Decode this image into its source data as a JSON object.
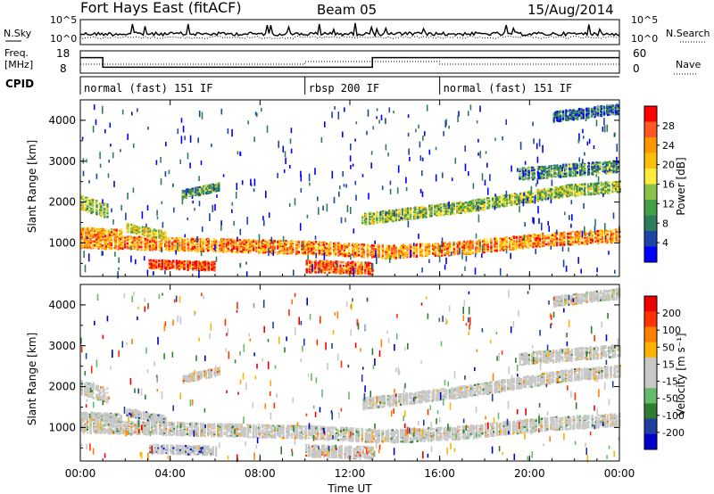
{
  "header": {
    "station": "Fort Hays East (fitACF)",
    "beam": "Beam 05",
    "date": "15/Aug/2014"
  },
  "summary_panels": {
    "nsky_label": "N.Sky",
    "nsky_ticks": [
      "10^5",
      "10^0"
    ],
    "nsky_right_ticks": [
      "10^5",
      "10^0"
    ],
    "nsearch_label": "N.Search",
    "freq_label_1": "Freq.",
    "freq_label_2": "[MHz]",
    "freq_ticks": [
      "18",
      "8"
    ],
    "nave_ticks": [
      "60",
      "0"
    ],
    "nave_label": "Nave",
    "cpid_label": "CPID",
    "cpid_segments": [
      {
        "label": "normal (fast) 151 IF",
        "start_hour": 0,
        "end_hour": 10
      },
      {
        "label": "rbsp 200 IF",
        "start_hour": 10,
        "end_hour": 16
      },
      {
        "label": "normal (fast) 151 IF",
        "start_hour": 16,
        "end_hour": 24
      }
    ],
    "frequency_steps": [
      {
        "start_hour": 0,
        "end_hour": 1,
        "freq_mhz": 16
      },
      {
        "start_hour": 1,
        "end_hour": 13,
        "freq_mhz": 10
      },
      {
        "start_hour": 13,
        "end_hour": 24,
        "freq_mhz": 16
      }
    ]
  },
  "chart_data": [
    {
      "type": "heatmap",
      "name": "power",
      "ylabel": "Slant Range [km]",
      "y_ticks": [
        1000,
        2000,
        3000,
        4000
      ],
      "ylim": [
        180,
        4500
      ],
      "x_ticks": [
        "00:00",
        "04:00",
        "08:00",
        "12:00",
        "16:00",
        "20:00",
        "00:00"
      ],
      "xlim_hours": [
        0,
        24
      ],
      "colorbar_label": "Power [dB]",
      "colorbar_ticks": [
        "28",
        "24",
        "20",
        "16",
        "12",
        "8",
        "4"
      ],
      "colors": [
        "#0000ff",
        "#1b45a8",
        "#2e7d5a",
        "#43a047",
        "#8bc34a",
        "#ffeb3b",
        "#ffc107",
        "#ff9800",
        "#ff5722",
        "#ff0000"
      ],
      "bands": [
        {
          "t": [
            0,
            24
          ],
          "center": [
            1050,
            1000,
            950,
            900,
            800,
            900,
            1100,
            1200
          ],
          "width": 320,
          "level": 0.75
        },
        {
          "t": [
            0,
            1.8
          ],
          "center": [
            1300,
            1250
          ],
          "width": 200,
          "level": 0.7
        },
        {
          "t": [
            0,
            1.2
          ],
          "center": [
            2000,
            1800
          ],
          "width": 350,
          "level": 0.45
        },
        {
          "t": [
            2,
            3.8
          ],
          "center": [
            1400,
            1200
          ],
          "width": 200,
          "level": 0.55
        },
        {
          "t": [
            4.5,
            6.2
          ],
          "center": [
            2200,
            2400
          ],
          "width": 200,
          "level": 0.35
        },
        {
          "t": [
            12.5,
            24
          ],
          "center": [
            1600,
            1750,
            1900,
            2100,
            2300,
            2400
          ],
          "width": 280,
          "level": 0.45
        },
        {
          "t": [
            10,
            13
          ],
          "center": [
            450,
            400
          ],
          "width": 300,
          "level": 0.85
        },
        {
          "t": [
            3,
            6
          ],
          "center": [
            500,
            450
          ],
          "width": 220,
          "level": 0.9
        },
        {
          "t": [
            19.5,
            24
          ],
          "center": [
            2700,
            2900
          ],
          "width": 300,
          "level": 0.3
        },
        {
          "t": [
            21,
            24
          ],
          "center": [
            4100,
            4300
          ],
          "width": 250,
          "level": 0.2
        }
      ]
    },
    {
      "type": "heatmap",
      "name": "velocity",
      "ylabel": "Slant Range [km]",
      "xlabel": "Time UT",
      "y_ticks": [
        1000,
        2000,
        3000,
        4000
      ],
      "ylim": [
        180,
        4500
      ],
      "x_ticks": [
        "00:00",
        "04:00",
        "08:00",
        "12:00",
        "16:00",
        "20:00",
        "00:00"
      ],
      "xlim_hours": [
        0,
        24
      ],
      "colorbar_label": "Velocity [m s⁻¹]",
      "colorbar_ticks": [
        "200",
        "100",
        "50",
        "15",
        "-15",
        "-50",
        "-100",
        "-200"
      ],
      "colors": [
        "#0000cc",
        "#1f3fa0",
        "#2e7d32",
        "#66bb6a",
        "#c8c8c8",
        "#c8c8c8",
        "#ffb300",
        "#ff7f00",
        "#ff3300",
        "#ee0000"
      ],
      "bands": [
        {
          "t": [
            0,
            24
          ],
          "center": [
            1050,
            1000,
            950,
            900,
            800,
            900,
            1100,
            1200
          ],
          "width": 320,
          "level": 0.5
        },
        {
          "t": [
            0,
            1.8
          ],
          "center": [
            1300,
            1250
          ],
          "width": 200,
          "level": 0.5
        },
        {
          "t": [
            0,
            1.2
          ],
          "center": [
            2000,
            1800
          ],
          "width": 350,
          "level": 0.5
        },
        {
          "t": [
            2,
            3.8
          ],
          "center": [
            1400,
            1200
          ],
          "width": 200,
          "level": 0.3
        },
        {
          "t": [
            4.5,
            6.2
          ],
          "center": [
            2200,
            2400
          ],
          "width": 200,
          "level": 0.6
        },
        {
          "t": [
            12.5,
            24
          ],
          "center": [
            1600,
            1750,
            1900,
            2100,
            2300,
            2400
          ],
          "width": 280,
          "level": 0.5
        },
        {
          "t": [
            10,
            13
          ],
          "center": [
            450,
            400
          ],
          "width": 300,
          "level": 0.65
        },
        {
          "t": [
            3,
            6
          ],
          "center": [
            500,
            450
          ],
          "width": 220,
          "level": 0.3
        },
        {
          "t": [
            19.5,
            24
          ],
          "center": [
            2700,
            2900
          ],
          "width": 300,
          "level": 0.5
        },
        {
          "t": [
            21,
            24
          ],
          "center": [
            4100,
            4300
          ],
          "width": 250,
          "level": 0.5
        }
      ]
    }
  ]
}
